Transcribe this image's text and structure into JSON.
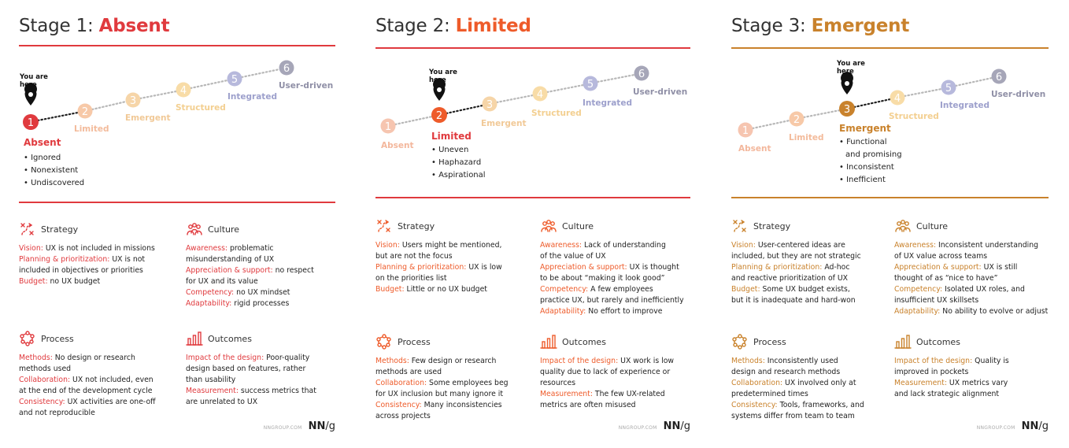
{
  "stage_labels": [
    "Absent",
    "Limited",
    "Emergent",
    "Structured",
    "Integrated",
    "User-driven"
  ],
  "stage_numbers": [
    "1",
    "2",
    "3",
    "4",
    "5",
    "6"
  ],
  "you_are_here": [
    "You are",
    "here"
  ],
  "section_names": {
    "strategy": "Strategy",
    "culture": "Culture",
    "process": "Process",
    "outcomes": "Outcomes"
  },
  "brand": {
    "url": "NNGROUP.COM",
    "nn": "NN",
    "g": "/g"
  },
  "colors": {
    "red": "#e03a3e",
    "orange": "#ee5b2a",
    "amber": "#c9822c",
    "text": "#222222",
    "faded": [
      "#f6c3ab",
      "#f7c8a6",
      "#f6d7a9",
      "#f8dba4",
      "#b9b8d8",
      "#a8a8bb"
    ]
  },
  "cards": [
    {
      "title_prefix": "Stage 1: ",
      "title_highlight": "Absent",
      "accent": "#e03a3e",
      "bullets": [
        "Ignored",
        "Nonexistent",
        "Undiscovered"
      ],
      "strategy": [
        {
          "k": "Vision:",
          "v": " UX is not included in missions"
        },
        {
          "k": "Planning & prioritization:",
          "v": " UX is not"
        },
        {
          "k": "",
          "v": "included in objectives or priorities"
        },
        {
          "k": "Budget:",
          "v": " no UX budget"
        }
      ],
      "culture": [
        {
          "k": "Awareness:",
          "v": " problematic"
        },
        {
          "k": "",
          "v": "misunderstanding of UX"
        },
        {
          "k": "Appreciation & support:",
          "v": " no respect"
        },
        {
          "k": "",
          "v": "for UX and its value"
        },
        {
          "k": "Competency:",
          "v": " no UX mindset"
        },
        {
          "k": "Adaptability:",
          "v": " rigid processes"
        }
      ],
      "process": [
        {
          "k": "Methods:",
          "v": " No design or research"
        },
        {
          "k": "",
          "v": "methods used"
        },
        {
          "k": "Collaboration:",
          "v": " UX not included, even"
        },
        {
          "k": "",
          "v": "at the end of the development cycle"
        },
        {
          "k": "Consistency:",
          "v": " UX activities are one-off"
        },
        {
          "k": "",
          "v": "and not reproducible"
        }
      ],
      "outcomes": [
        {
          "k": "Impact of the design:",
          "v": " Poor-quality"
        },
        {
          "k": "",
          "v": "design based on features, rather"
        },
        {
          "k": "",
          "v": "than usability"
        },
        {
          "k": "Measurement:",
          "v": " success metrics that"
        },
        {
          "k": "",
          "v": "are unrelated to UX"
        }
      ]
    },
    {
      "title_prefix": "Stage 2: ",
      "title_highlight": "Limited",
      "accent": "#ee5b2a",
      "bullets": [
        "Uneven",
        "Haphazard",
        "Aspirational"
      ],
      "strategy": [
        {
          "k": "Vision:",
          "v": " Users might be mentioned,"
        },
        {
          "k": "",
          "v": "but are not the focus"
        },
        {
          "k": "Planning & prioritization:",
          "v": " UX is low"
        },
        {
          "k": "",
          "v": "on the priorities list"
        },
        {
          "k": "Budget:",
          "v": " Little or no UX budget"
        }
      ],
      "culture": [
        {
          "k": "Awareness:",
          "v": " Lack of understanding"
        },
        {
          "k": "",
          "v": "of the value of UX"
        },
        {
          "k": "Appreciation & support:",
          "v": " UX is thought"
        },
        {
          "k": "",
          "v": "to be about “making it look good”"
        },
        {
          "k": "Competency:",
          "v": " A few employees"
        },
        {
          "k": "",
          "v": "practice UX, but rarely and inefficiently"
        },
        {
          "k": "Adaptability:",
          "v": " No effort to improve"
        }
      ],
      "process": [
        {
          "k": "Methods:",
          "v": " Few design or research"
        },
        {
          "k": "",
          "v": "methods are used"
        },
        {
          "k": "Collaboration:",
          "v": " Some employees beg"
        },
        {
          "k": "",
          "v": "for UX inclusion but many ignore it"
        },
        {
          "k": "Consistency:",
          "v": " Many inconsistencies"
        },
        {
          "k": "",
          "v": "across projects"
        }
      ],
      "outcomes": [
        {
          "k": "Impact of the design:",
          "v": " UX work is low"
        },
        {
          "k": "",
          "v": "quality due to lack of experience or"
        },
        {
          "k": "",
          "v": "resources"
        },
        {
          "k": "Measurement:",
          "v": " The few UX-related"
        },
        {
          "k": "",
          "v": "metrics are often misused"
        }
      ]
    },
    {
      "title_prefix": "Stage 3: ",
      "title_highlight": "Emergent",
      "accent": "#c9822c",
      "bullets": [
        "Functional",
        "and promising",
        "Inconsistent",
        "Inefficient"
      ],
      "strategy": [
        {
          "k": "Vision:",
          "v": " User-centered ideas are"
        },
        {
          "k": "",
          "v": "included, but they are not strategic"
        },
        {
          "k": "Planning & prioritization:",
          "v": " Ad-hoc"
        },
        {
          "k": "",
          "v": "and reactive prioritization of UX"
        },
        {
          "k": "Budget:",
          "v": " Some UX budget exists,"
        },
        {
          "k": "",
          "v": "but it is inadequate and hard-won"
        }
      ],
      "culture": [
        {
          "k": "Awareness:",
          "v": " Inconsistent understanding"
        },
        {
          "k": "",
          "v": "of UX value across teams"
        },
        {
          "k": "Appreciation & support:",
          "v": " UX is still"
        },
        {
          "k": "",
          "v": "thought of as “nice to have”"
        },
        {
          "k": "Competency:",
          "v": " Isolated UX roles, and"
        },
        {
          "k": "",
          "v": "insufficient UX skillsets"
        },
        {
          "k": "Adaptability:",
          "v": " No ability to evolve or adjust"
        }
      ],
      "process": [
        {
          "k": "Methods:",
          "v": " Inconsistently used"
        },
        {
          "k": "",
          "v": "design and research methods"
        },
        {
          "k": "Collaboration:",
          "v": " UX involved only at"
        },
        {
          "k": "",
          "v": "predetermined times"
        },
        {
          "k": "Consistency:",
          "v": " Tools, frameworks, and"
        },
        {
          "k": "",
          "v": "systems differ from team to team"
        }
      ],
      "outcomes": [
        {
          "k": "Impact of the design:",
          "v": " Quality is"
        },
        {
          "k": "",
          "v": "improved in pockets"
        },
        {
          "k": "Measurement:",
          "v": " UX metrics vary"
        },
        {
          "k": "",
          "v": "and lack strategic alignment"
        }
      ]
    }
  ]
}
